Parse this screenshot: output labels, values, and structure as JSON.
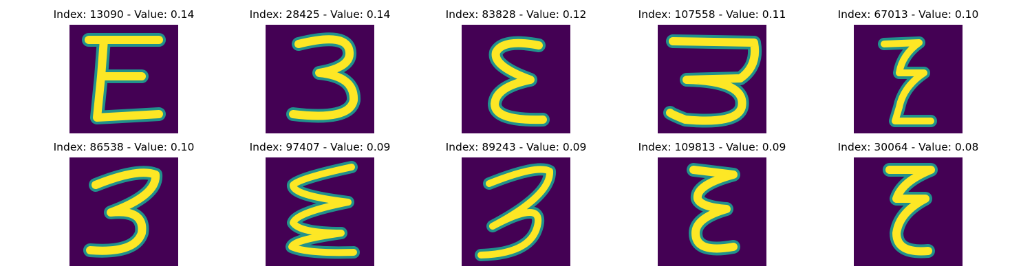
{
  "colormap": "viridis",
  "background_color": "#440154",
  "stroke_color": "#fde725",
  "edge_color": "#21918c",
  "panels": [
    {
      "title": "Index: 13090 - Value: 0.14",
      "glyph": "E"
    },
    {
      "title": "Index: 28425 - Value: 0.14",
      "glyph": "3"
    },
    {
      "title": "Index: 83828 - Value: 0.12",
      "glyph": "E"
    },
    {
      "title": "Index: 107558 - Value: 0.11",
      "glyph": "3"
    },
    {
      "title": "Index: 67013 - Value: 0.10",
      "glyph": "E"
    },
    {
      "title": "Index: 86538 - Value: 0.10",
      "glyph": "3"
    },
    {
      "title": "Index: 97407 - Value: 0.09",
      "glyph": "E"
    },
    {
      "title": "Index: 89243 - Value: 0.09",
      "glyph": "3"
    },
    {
      "title": "Index: 109813 - Value: 0.09",
      "glyph": "E"
    },
    {
      "title": "Index: 30064 - Value: 0.08",
      "glyph": "E"
    }
  ]
}
